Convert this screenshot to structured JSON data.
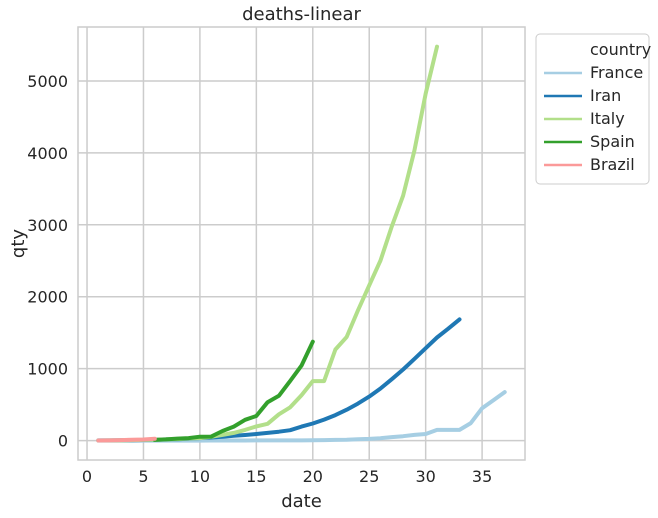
{
  "chart_data": {
    "type": "line",
    "title": "deaths-linear",
    "xlabel": "date",
    "ylabel": "qty",
    "xlim": [
      -0.8,
      38.8
    ],
    "ylim": [
      -270,
      5750
    ],
    "xticks": [
      0,
      5,
      10,
      15,
      20,
      25,
      30,
      35
    ],
    "yticks": [
      0,
      1000,
      2000,
      3000,
      4000,
      5000
    ],
    "grid": true,
    "legend": {
      "title": "country",
      "placement": "outside-top-right"
    },
    "series": [
      {
        "name": "France",
        "color": "#a6cee3",
        "x": [
          1,
          2,
          3,
          4,
          5,
          6,
          7,
          8,
          9,
          10,
          11,
          12,
          13,
          14,
          15,
          16,
          17,
          18,
          19,
          20,
          21,
          22,
          23,
          24,
          25,
          26,
          27,
          28,
          29,
          30,
          31,
          32,
          33,
          34,
          35,
          36,
          37
        ],
        "y": [
          0,
          0,
          0,
          0,
          0,
          0,
          0,
          0,
          0,
          0,
          1,
          1,
          1,
          1,
          2,
          2,
          2,
          3,
          3,
          4,
          6,
          9,
          11,
          19,
          24,
          33,
          48,
          61,
          79,
          91,
          148,
          148,
          148,
          243,
          450,
          562,
          674
        ]
      },
      {
        "name": "Iran",
        "color": "#1f78b4",
        "x": [
          1,
          2,
          3,
          4,
          5,
          6,
          7,
          8,
          9,
          10,
          11,
          12,
          13,
          14,
          15,
          16,
          17,
          18,
          19,
          20,
          21,
          22,
          23,
          24,
          25,
          26,
          27,
          28,
          29,
          30,
          31,
          32,
          33
        ],
        "y": [
          2,
          2,
          4,
          5,
          8,
          12,
          16,
          19,
          26,
          34,
          43,
          54,
          66,
          77,
          92,
          107,
          124,
          145,
          194,
          237,
          291,
          354,
          429,
          514,
          611,
          724,
          853,
          988,
          1135,
          1284,
          1433,
          1556,
          1685
        ]
      },
      {
        "name": "Italy",
        "color": "#b2df8a",
        "x": [
          1,
          2,
          3,
          4,
          5,
          6,
          7,
          8,
          9,
          10,
          11,
          12,
          13,
          14,
          15,
          16,
          17,
          18,
          19,
          20,
          21,
          22,
          23,
          24,
          25,
          26,
          27,
          28,
          29,
          30,
          31
        ],
        "y": [
          1,
          2,
          3,
          7,
          10,
          12,
          17,
          21,
          29,
          34,
          52,
          79,
          107,
          148,
          197,
          233,
          366,
          463,
          631,
          827,
          827,
          1266,
          1441,
          1809,
          2158,
          2503,
          2978,
          3405,
          4032,
          4825,
          5476
        ]
      },
      {
        "name": "Spain",
        "color": "#33a02c",
        "x": [
          6,
          7,
          8,
          9,
          10,
          11,
          12,
          13,
          14,
          15,
          16,
          17,
          18,
          19,
          20
        ],
        "y": [
          10,
          17,
          28,
          35,
          54,
          55,
          133,
          195,
          289,
          342,
          533,
          623,
          830,
          1043,
          1375
        ]
      },
      {
        "name": "Brazil",
        "color": "#fb9a99",
        "x": [
          1,
          2,
          3,
          4,
          5,
          6
        ],
        "y": [
          1,
          3,
          6,
          11,
          15,
          25
        ]
      }
    ]
  }
}
